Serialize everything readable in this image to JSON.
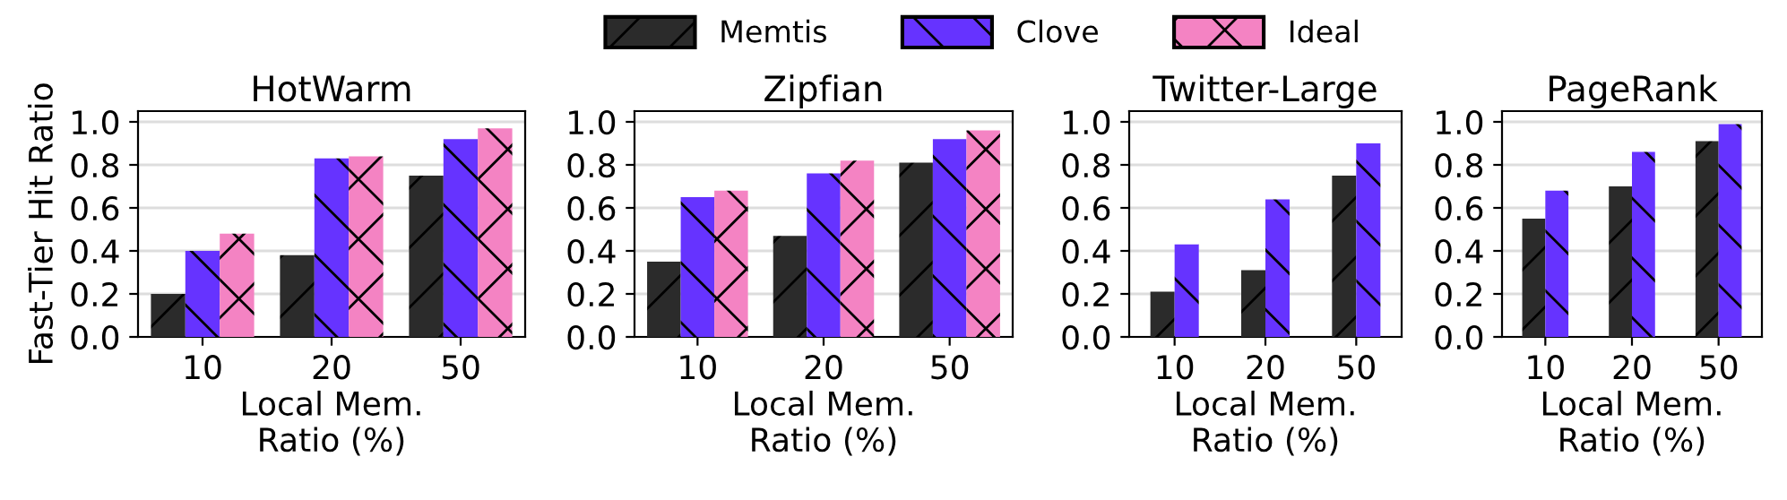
{
  "chart_data": [
    {
      "type": "bar",
      "title": "HotWarm",
      "xlabel": "Local Mem.\nRatio (%)",
      "ylabel": "Fast-Tier Hit Ratio",
      "categories": [
        "10",
        "20",
        "50"
      ],
      "legend": "top",
      "grid": "y",
      "ylim": [
        0,
        1.05
      ],
      "yticks": [
        {
          "value": 0,
          "label": "0.0"
        },
        {
          "value": 0.2,
          "label": "0.2"
        },
        {
          "value": 0.4,
          "label": "0.4"
        },
        {
          "value": 0.6,
          "label": "0.6"
        },
        {
          "value": 0.8,
          "label": "0.8"
        },
        {
          "value": 1,
          "label": "1.0"
        }
      ],
      "series": [
        {
          "name": "Memtis",
          "color": "#2b2b2b",
          "values": [
            0.2,
            0.38,
            0.75
          ]
        },
        {
          "name": "Clove",
          "color": "#6633ff",
          "values": [
            0.4,
            0.83,
            0.92
          ]
        },
        {
          "name": "Ideal",
          "color": "#f483c3",
          "values": [
            0.48,
            0.84,
            0.97
          ]
        }
      ]
    },
    {
      "type": "bar",
      "title": "Zipfian",
      "xlabel": "Local Mem.\nRatio (%)",
      "categories": [
        "10",
        "20",
        "50"
      ],
      "grid": "y",
      "ylim": [
        0,
        1.05
      ],
      "yticks": [
        {
          "value": 0,
          "label": "0.0"
        },
        {
          "value": 0.2,
          "label": "0.2"
        },
        {
          "value": 0.4,
          "label": "0.4"
        },
        {
          "value": 0.6,
          "label": "0.6"
        },
        {
          "value": 0.8,
          "label": "0.8"
        },
        {
          "value": 1,
          "label": "1.0"
        }
      ],
      "series": [
        {
          "color": "#2b2b2b",
          "values": [
            0.35,
            0.47,
            0.81
          ]
        },
        {
          "color": "#6633ff",
          "values": [
            0.65,
            0.76,
            0.92
          ]
        },
        {
          "color": "#f483c3",
          "values": [
            0.68,
            0.82,
            0.96
          ]
        }
      ]
    },
    {
      "type": "bar",
      "title": "Twitter-Large",
      "xlabel": "Local Mem.\nRatio (%)",
      "categories": [
        "10",
        "20",
        "50"
      ],
      "grid": "y",
      "ylim": [
        0,
        1.05
      ],
      "yticks": [
        {
          "value": 0,
          "label": "0.0"
        },
        {
          "value": 0.2,
          "label": "0.2"
        },
        {
          "value": 0.4,
          "label": "0.4"
        },
        {
          "value": 0.6,
          "label": "0.6"
        },
        {
          "value": 0.8,
          "label": "0.8"
        },
        {
          "value": 1,
          "label": "1.0"
        }
      ],
      "series": [
        {
          "color": "#2b2b2b",
          "values": [
            0.21,
            0.31,
            0.75
          ]
        },
        {
          "color": "#6633ff",
          "values": [
            0.43,
            0.64,
            0.9
          ]
        }
      ]
    },
    {
      "type": "bar",
      "title": "PageRank",
      "xlabel": "Local Mem.\nRatio (%)",
      "categories": [
        "10",
        "20",
        "50"
      ],
      "grid": "y",
      "ylim": [
        0,
        1.05
      ],
      "yticks": [
        {
          "value": 0,
          "label": "0.0"
        },
        {
          "value": 0.2,
          "label": "0.2"
        },
        {
          "value": 0.4,
          "label": "0.4"
        },
        {
          "value": 0.6,
          "label": "0.6"
        },
        {
          "value": 0.8,
          "label": "0.8"
        },
        {
          "value": 1,
          "label": "1.0"
        }
      ],
      "series": [
        {
          "color": "#2b2b2b",
          "values": [
            0.55,
            0.7,
            0.91
          ]
        },
        {
          "color": "#6633ff",
          "values": [
            0.68,
            0.86,
            0.99
          ]
        }
      ]
    }
  ]
}
